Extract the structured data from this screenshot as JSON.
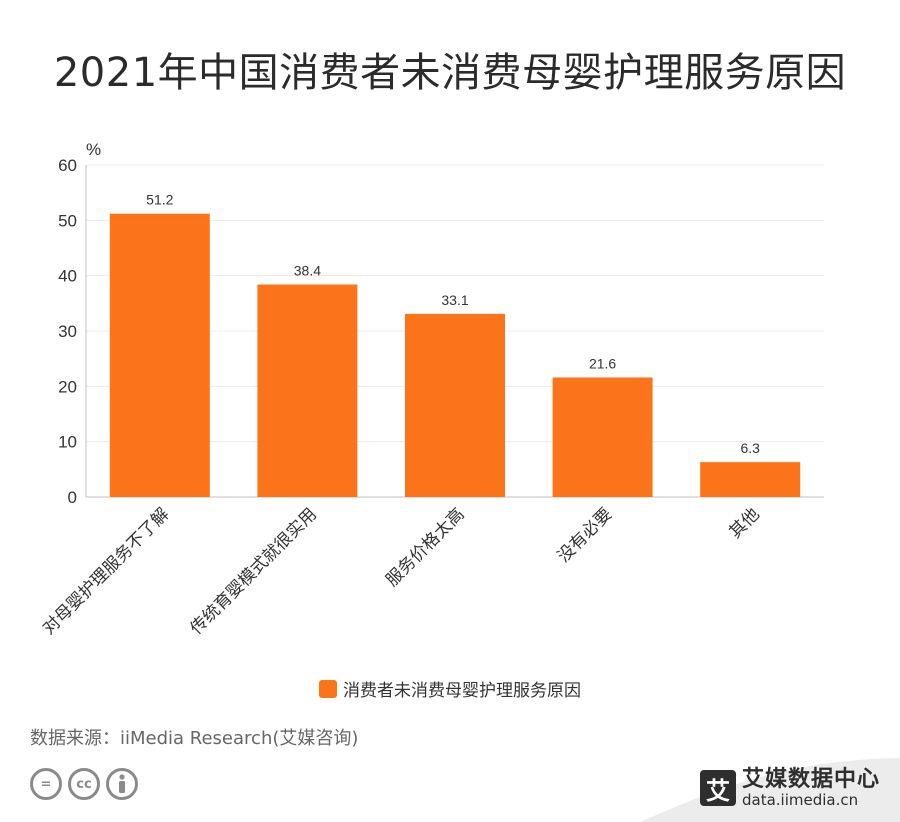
{
  "title": "2021年中国消费者未消费母婴护理服务原因",
  "chart_data": {
    "type": "bar",
    "unit_label": "%",
    "categories": [
      "对母婴护理服务不了解",
      "传统育婴模式就很实用",
      "服务价格太高",
      "没有必要",
      "其他"
    ],
    "series": [
      {
        "name": "消费者未消费母婴护理服务原因",
        "values": [
          51.2,
          38.4,
          33.1,
          21.6,
          6.3
        ]
      }
    ],
    "data_labels": [
      "51.2",
      "38.4",
      "33.1",
      "21.6",
      "6.3"
    ],
    "yticks": [
      0,
      10,
      20,
      30,
      40,
      50,
      60
    ],
    "ylim": [
      0,
      60
    ],
    "grid": true,
    "legend_position": "bottom",
    "bar_color": "#FB7419"
  },
  "legend": {
    "label": "消费者未消费母婴护理服务原因"
  },
  "source": "数据来源：iiMedia Research(艾媒咨询)",
  "license_icons": [
    "=",
    "cc",
    "i"
  ],
  "brand": {
    "name": "艾媒数据中心",
    "url": "data.iimedia.cn",
    "logo_char": "艾"
  }
}
